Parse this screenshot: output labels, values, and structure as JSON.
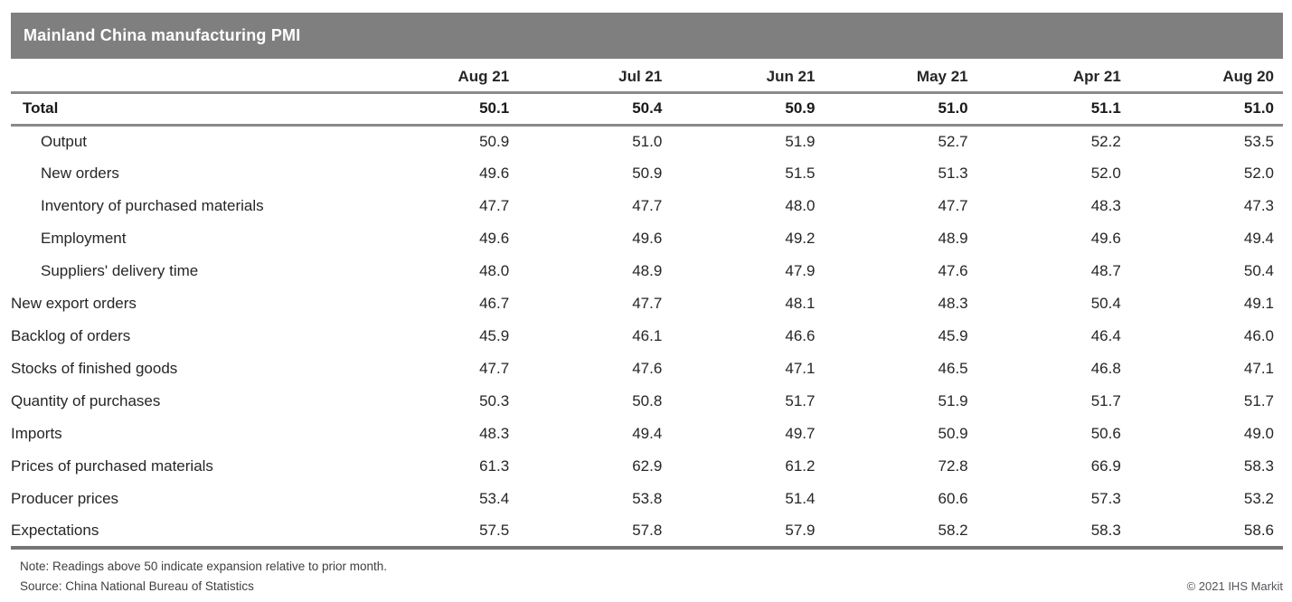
{
  "title_bar": {
    "title": "Mainland China manufacturing PMI"
  },
  "chart_data": {
    "type": "table",
    "title": "Mainland China manufacturing PMI",
    "columns": [
      "Aug 21",
      "Jul 21",
      "Jun 21",
      "May 21",
      "Apr 21",
      "Aug 20"
    ],
    "rows": [
      {
        "label": "Total",
        "values": [
          50.1,
          50.4,
          50.9,
          51.0,
          51.1,
          51.0
        ],
        "bold": true,
        "indent": 1
      },
      {
        "label": "Output",
        "values": [
          50.9,
          51.0,
          51.9,
          52.7,
          52.2,
          53.5
        ],
        "bold": false,
        "indent": 2
      },
      {
        "label": "New orders",
        "values": [
          49.6,
          50.9,
          51.5,
          51.3,
          52.0,
          52.0
        ],
        "bold": false,
        "indent": 2
      },
      {
        "label": "Inventory of purchased materials",
        "values": [
          47.7,
          47.7,
          48.0,
          47.7,
          48.3,
          47.3
        ],
        "bold": false,
        "indent": 2
      },
      {
        "label": "Employment",
        "values": [
          49.6,
          49.6,
          49.2,
          48.9,
          49.6,
          49.4
        ],
        "bold": false,
        "indent": 2
      },
      {
        "label": "Suppliers' delivery time",
        "values": [
          48.0,
          48.9,
          47.9,
          47.6,
          48.7,
          50.4
        ],
        "bold": false,
        "indent": 2
      },
      {
        "label": "New export orders",
        "values": [
          46.7,
          47.7,
          48.1,
          48.3,
          50.4,
          49.1
        ],
        "bold": false,
        "indent": 0
      },
      {
        "label": "Backlog of orders",
        "values": [
          45.9,
          46.1,
          46.6,
          45.9,
          46.4,
          46.0
        ],
        "bold": false,
        "indent": 0
      },
      {
        "label": "Stocks of finished goods",
        "values": [
          47.7,
          47.6,
          47.1,
          46.5,
          46.8,
          47.1
        ],
        "bold": false,
        "indent": 0
      },
      {
        "label": "Quantity of purchases",
        "values": [
          50.3,
          50.8,
          51.7,
          51.9,
          51.7,
          51.7
        ],
        "bold": false,
        "indent": 0
      },
      {
        "label": "Imports",
        "values": [
          48.3,
          49.4,
          49.7,
          50.9,
          50.6,
          49.0
        ],
        "bold": false,
        "indent": 0
      },
      {
        "label": "Prices of purchased materials",
        "values": [
          61.3,
          62.9,
          61.2,
          72.8,
          66.9,
          58.3
        ],
        "bold": false,
        "indent": 0
      },
      {
        "label": "Producer prices",
        "values": [
          53.4,
          53.8,
          51.4,
          60.6,
          57.3,
          53.2
        ],
        "bold": false,
        "indent": 0
      },
      {
        "label": "Expectations",
        "values": [
          57.5,
          57.8,
          57.9,
          58.2,
          58.3,
          58.6
        ],
        "bold": false,
        "indent": 0
      }
    ],
    "value_format": "one-decimal",
    "grid": "horizontal-rules-only",
    "legend_position": "none"
  },
  "footer": {
    "note": "Note: Readings above 50 indicate expansion relative to prior month.",
    "source": "Source: China National Bureau of Statistics",
    "copyright": "© 2021 IHS Markit"
  },
  "colors": {
    "title_bar_bg": "#7f7f7f",
    "title_text": "#ffffff",
    "rule": "#8a8a8a",
    "bottom_rule": "#757575",
    "body_text": "#262626",
    "footer_text": "#3f3f3f"
  }
}
